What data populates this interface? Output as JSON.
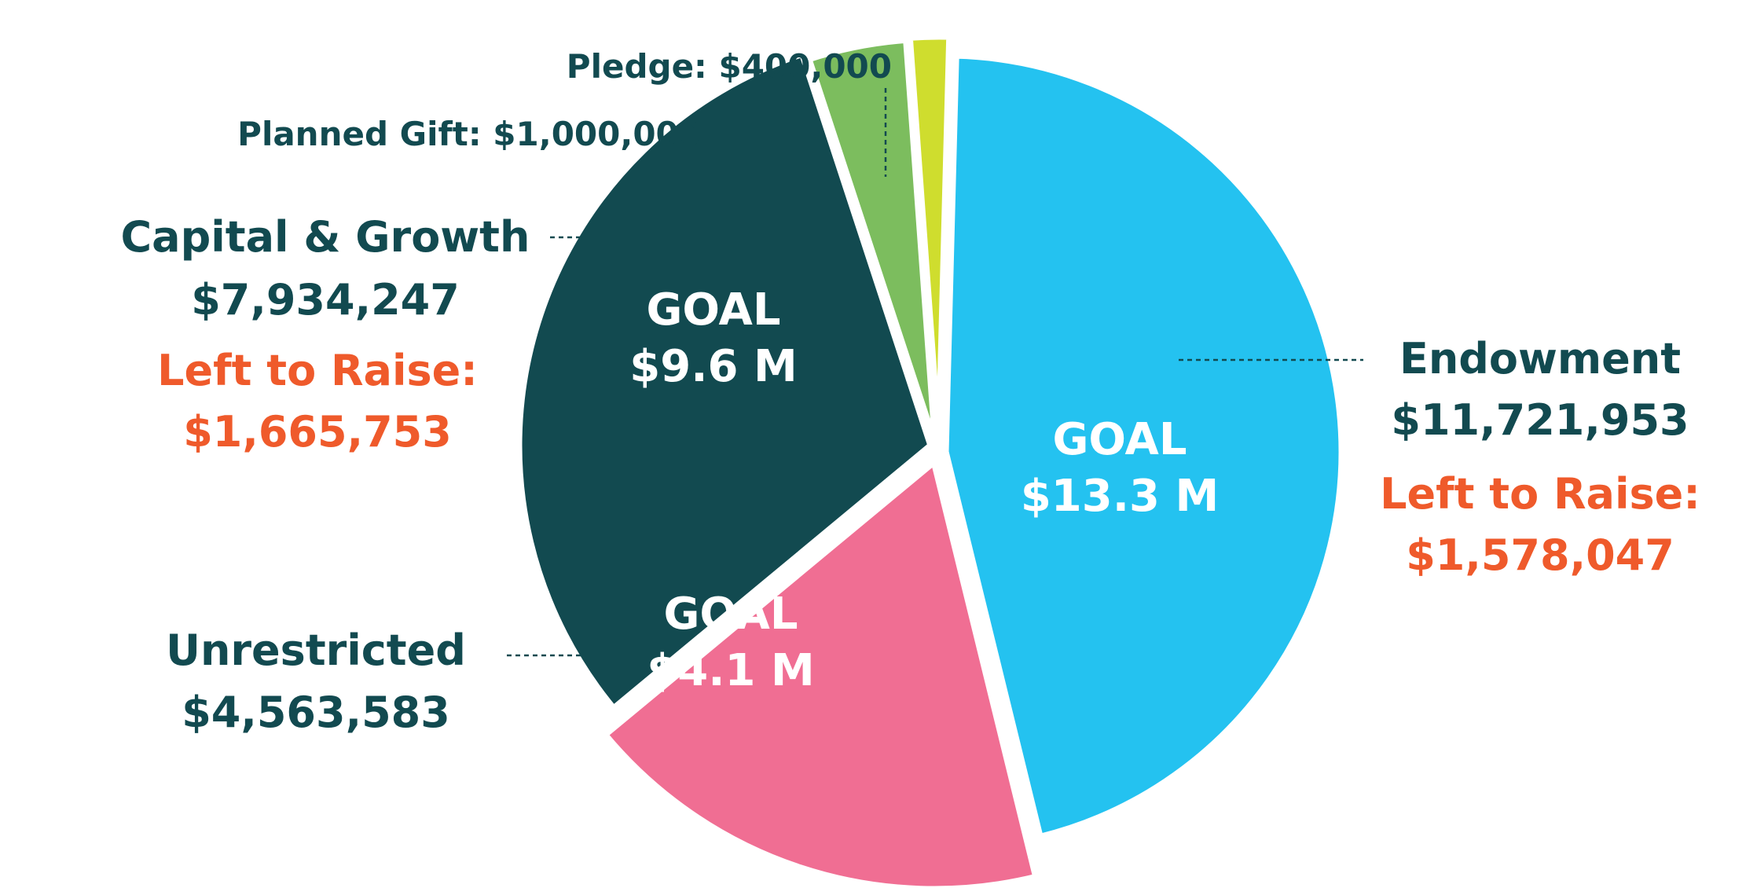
{
  "chart_data": {
    "type": "pie",
    "title": "",
    "slices": [
      {
        "key": "endowment",
        "name": "Endowment",
        "amount": "$11,721,953",
        "left_label": "Left to Raise:",
        "left_amount": "$1,578,047",
        "goal_label": "GOAL",
        "goal_amount": "$13.3 M",
        "value": 11721953,
        "color": "#24c2f0"
      },
      {
        "key": "unrestricted",
        "name": "Unrestricted",
        "amount": "$4,563,583",
        "goal_label": "GOAL",
        "goal_amount": "$4.1 M",
        "value": 4563583,
        "color": "#f06e93"
      },
      {
        "key": "capital",
        "name": "Capital & Growth",
        "amount": "$7,934,247",
        "left_label": "Left to Raise:",
        "left_amount": "$1,665,753",
        "goal_label": "GOAL",
        "goal_amount": "$9.6 M",
        "value": 7934247,
        "color": "#124a50"
      },
      {
        "key": "planned",
        "name": "Planned Gift: $1,000,000",
        "value": 1000000,
        "color": "#7cbd5e"
      },
      {
        "key": "pledge",
        "name": "Pledge: $400,000",
        "value": 400000,
        "color": "#cfdd2e"
      }
    ]
  },
  "colors": {
    "text_dark": "#124a50",
    "text_orange": "#ef5a2b"
  }
}
